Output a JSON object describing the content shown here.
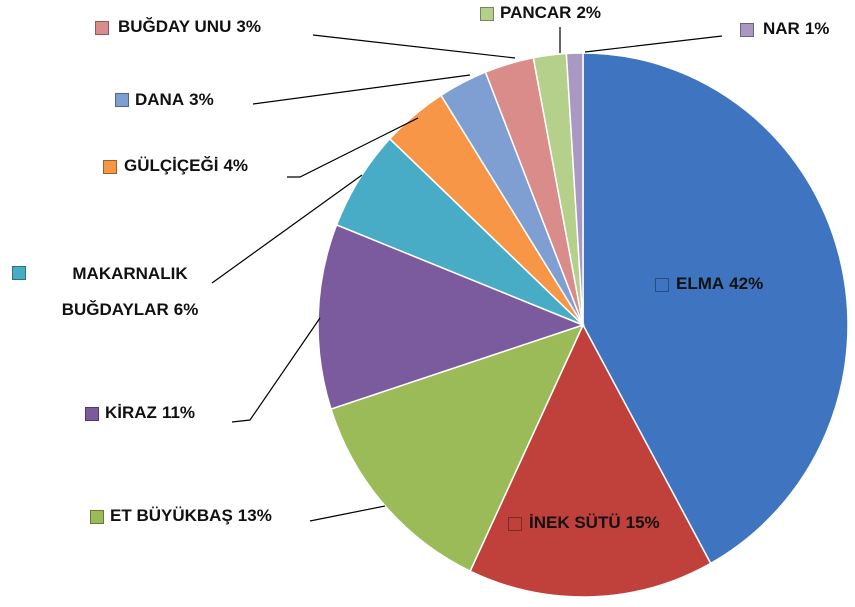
{
  "chart_data": {
    "type": "pie",
    "categories": [
      "ELMA",
      "İNEK SÜTÜ",
      "ET BÜYÜKBAŞ",
      "KİRAZ",
      "MAKARNALIK BUĞDAYLAR",
      "GÜLÇİÇEĞİ",
      "DANA",
      "BUĞDAY UNU",
      "PANCAR",
      "NAR"
    ],
    "values": [
      42,
      15,
      13,
      11,
      6,
      4,
      3,
      3,
      2,
      1
    ],
    "value_labels": [
      "42%",
      "15%",
      "13%",
      "11%",
      "6%",
      "4%",
      "3%",
      "3%",
      "2%",
      "1%"
    ],
    "colors": [
      "#3f74c0",
      "#c0403c",
      "#9bbb59",
      "#7b5a9e",
      "#49acc6",
      "#f79646",
      "#7f9fd2",
      "#d98c8a",
      "#b4d08a",
      "#a898c2"
    ]
  }
}
